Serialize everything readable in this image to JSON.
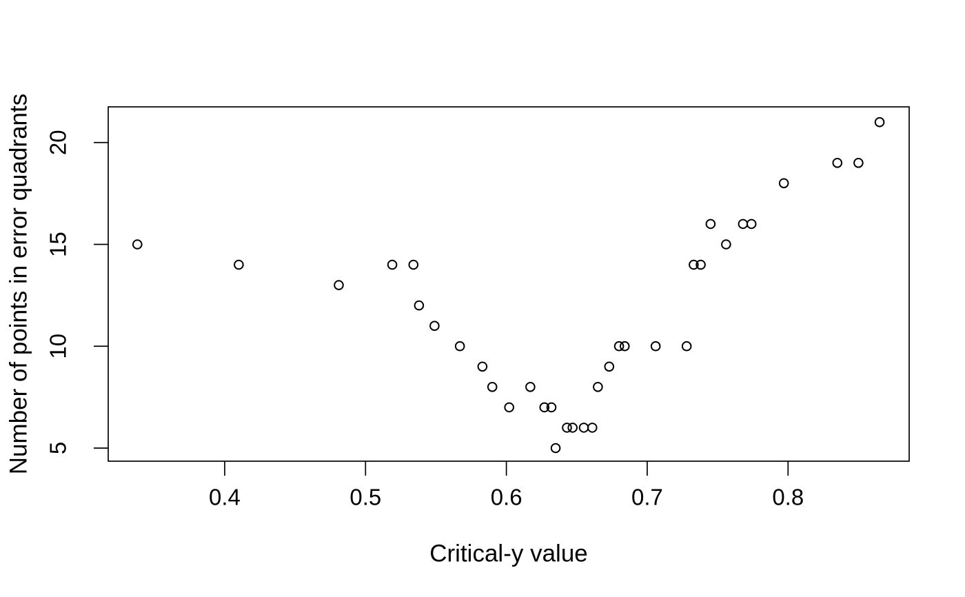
{
  "figure": {
    "background_color": "#ffffff",
    "foreground_color": "#000000",
    "title": ""
  },
  "chart_data": {
    "type": "scatter",
    "title": "",
    "xlabel": "Critical-y value",
    "ylabel": "Number of points in error quadrants",
    "xlim": [
      0.3173,
      0.886
    ],
    "ylim": [
      4.357,
      21.75
    ],
    "x_ticks": [
      0.4,
      0.5,
      0.6,
      0.7,
      0.8
    ],
    "x_tick_labels": [
      "0.4",
      "0.5",
      "0.6",
      "0.7",
      "0.8"
    ],
    "y_ticks": [
      5,
      10,
      15,
      20
    ],
    "y_tick_labels": [
      "5",
      "10",
      "15",
      "20"
    ],
    "grid": false,
    "legend": null,
    "marker": "open-circle",
    "marker_color": "#000000",
    "points": [
      {
        "x": 0.338,
        "y": 15
      },
      {
        "x": 0.41,
        "y": 14
      },
      {
        "x": 0.481,
        "y": 13
      },
      {
        "x": 0.519,
        "y": 14
      },
      {
        "x": 0.534,
        "y": 14
      },
      {
        "x": 0.538,
        "y": 12
      },
      {
        "x": 0.549,
        "y": 11
      },
      {
        "x": 0.567,
        "y": 10
      },
      {
        "x": 0.583,
        "y": 9
      },
      {
        "x": 0.59,
        "y": 8
      },
      {
        "x": 0.602,
        "y": 7
      },
      {
        "x": 0.617,
        "y": 8
      },
      {
        "x": 0.627,
        "y": 7
      },
      {
        "x": 0.632,
        "y": 7
      },
      {
        "x": 0.635,
        "y": 5
      },
      {
        "x": 0.643,
        "y": 6
      },
      {
        "x": 0.647,
        "y": 6
      },
      {
        "x": 0.655,
        "y": 6
      },
      {
        "x": 0.661,
        "y": 6
      },
      {
        "x": 0.665,
        "y": 8
      },
      {
        "x": 0.673,
        "y": 9
      },
      {
        "x": 0.68,
        "y": 10
      },
      {
        "x": 0.684,
        "y": 10
      },
      {
        "x": 0.706,
        "y": 10
      },
      {
        "x": 0.728,
        "y": 10
      },
      {
        "x": 0.733,
        "y": 14
      },
      {
        "x": 0.738,
        "y": 14
      },
      {
        "x": 0.745,
        "y": 16
      },
      {
        "x": 0.756,
        "y": 15
      },
      {
        "x": 0.768,
        "y": 16
      },
      {
        "x": 0.774,
        "y": 16
      },
      {
        "x": 0.797,
        "y": 18
      },
      {
        "x": 0.835,
        "y": 19
      },
      {
        "x": 0.85,
        "y": 19
      },
      {
        "x": 0.865,
        "y": 21
      }
    ]
  }
}
